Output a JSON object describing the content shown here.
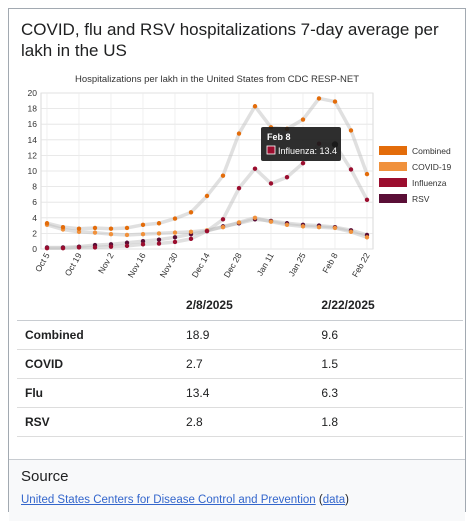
{
  "title": "COVID, flu and RSV hospitalizations 7-day average per lakh in the US",
  "chart_data": {
    "type": "line",
    "title": "Hospitalizations per lakh in the United States from CDC RESP-NET",
    "xlabel": "",
    "ylabel": "",
    "ylim": [
      0,
      20
    ],
    "y_ticks": [
      0,
      2,
      4,
      6,
      8,
      10,
      12,
      14,
      16,
      18,
      20
    ],
    "x_tick_labels": [
      "Oct 5",
      "Oct 19",
      "Nov 2",
      "Nov 16",
      "Nov 30",
      "Dec 14",
      "Dec 28",
      "Jan 11",
      "Jan 25",
      "Feb 8",
      "Feb 22"
    ],
    "grid": true,
    "legend_position": "right",
    "x": [
      "Oct 5",
      "Oct 12",
      "Oct 19",
      "Oct 26",
      "Nov 2",
      "Nov 9",
      "Nov 16",
      "Nov 23",
      "Nov 30",
      "Dec 7",
      "Dec 14",
      "Dec 21",
      "Dec 28",
      "Jan 4",
      "Jan 11",
      "Jan 18",
      "Jan 25",
      "Feb 1",
      "Feb 8",
      "Feb 15",
      "Feb 22"
    ],
    "series": [
      {
        "name": "Combined",
        "color": "#e36c0a",
        "values": [
          3.3,
          2.8,
          2.6,
          2.7,
          2.6,
          2.7,
          3.1,
          3.3,
          3.9,
          4.7,
          6.8,
          9.4,
          14.8,
          18.3,
          15.6,
          15.4,
          16.6,
          19.3,
          18.9,
          15.2,
          9.6
        ]
      },
      {
        "name": "COVID-19",
        "color": "#f0913c",
        "values": [
          3.1,
          2.5,
          2.2,
          2.1,
          1.9,
          1.8,
          1.9,
          2.0,
          2.1,
          2.2,
          2.4,
          2.8,
          3.4,
          4.0,
          3.5,
          3.1,
          2.9,
          2.8,
          2.7,
          2.2,
          1.5
        ]
      },
      {
        "name": "Influenza",
        "color": "#9b0d2e",
        "values": [
          0.1,
          0.1,
          0.2,
          0.2,
          0.3,
          0.4,
          0.6,
          0.7,
          0.9,
          1.3,
          2.3,
          3.8,
          7.8,
          10.3,
          8.4,
          9.2,
          11.0,
          13.5,
          13.4,
          10.2,
          6.3
        ]
      },
      {
        "name": "RSV",
        "color": "#5a0e36",
        "values": [
          0.2,
          0.2,
          0.3,
          0.5,
          0.6,
          0.8,
          1.0,
          1.2,
          1.5,
          1.9,
          2.3,
          2.9,
          3.3,
          3.8,
          3.6,
          3.3,
          3.1,
          3.0,
          2.8,
          2.4,
          1.8
        ]
      }
    ],
    "tooltip": {
      "date": "Feb 8",
      "series": "Influenza",
      "label": "Influenza: 13.4",
      "index": 18
    }
  },
  "table": {
    "headers": [
      "",
      "2/8/2025",
      "2/22/2025"
    ],
    "rows": [
      {
        "label": "Combined",
        "v1": "18.9",
        "v2": "9.6"
      },
      {
        "label": "COVID",
        "v1": "2.7",
        "v2": "1.5"
      },
      {
        "label": "Flu",
        "v1": "13.4",
        "v2": "6.3"
      },
      {
        "label": "RSV",
        "v1": "2.8",
        "v2": "1.8"
      }
    ]
  },
  "source": {
    "title": "Source",
    "link_text": "United States Centers for Disease Control and Prevention",
    "paren_open": "(",
    "data_link": "data",
    "paren_close": ")"
  }
}
